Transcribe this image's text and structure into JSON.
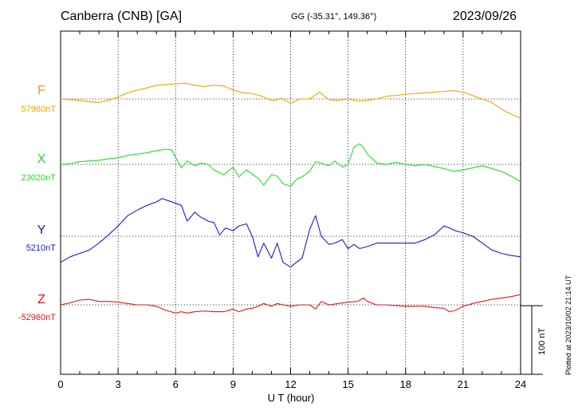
{
  "header": {
    "station": "Canberra (CNB)  [GA]",
    "coords": "GG (-35.31°, 149.36°)",
    "date": "2023/09/26"
  },
  "side_note": "Plotted at 2023/10/02 21:14 UT",
  "scale_label": "100 nT",
  "chart_data": {
    "type": "line",
    "xlabel": "U T (hour)",
    "xlim": [
      0,
      24
    ],
    "xticks": [
      0,
      3,
      6,
      9,
      12,
      15,
      18,
      21,
      24
    ],
    "scale_bar_nT": 100,
    "grid": true,
    "series": [
      {
        "name": "F",
        "baseline_label": "57980nT",
        "baseline": 57980,
        "color": "#f5a300",
        "x": [
          0,
          0.5,
          1,
          1.5,
          2,
          2.5,
          3,
          3.5,
          4,
          4.5,
          5,
          5.5,
          6,
          6.5,
          7,
          7.5,
          8,
          8.5,
          9,
          9.5,
          10,
          10.5,
          11,
          11.2,
          11.5,
          12,
          12.5,
          13,
          13.5,
          14,
          14.5,
          15,
          15.5,
          16,
          16.5,
          17,
          17.5,
          18,
          18.5,
          19,
          19.5,
          20,
          20.5,
          21,
          21.5,
          22,
          22.5,
          23,
          23.5,
          24
        ],
        "y": [
          57980,
          57979,
          57978,
          57976,
          57975,
          57978,
          57983,
          57989,
          57993,
          57996,
          58000,
          58001,
          58002,
          58003,
          58000,
          57998,
          58000,
          57999,
          57993,
          57989,
          57988,
          57984,
          57978,
          57978,
          57981,
          57974,
          57980,
          57980,
          57990,
          57979,
          57978,
          57980,
          57977,
          57978,
          57980,
          57984,
          57985,
          57987,
          57988,
          57989,
          57990,
          57991,
          57992,
          57990,
          57985,
          57980,
          57975,
          57965,
          57958,
          57952
        ]
      },
      {
        "name": "X",
        "baseline_label": "23020nT",
        "baseline": 23020,
        "color": "#22dd22",
        "x": [
          0,
          0.5,
          1,
          1.5,
          2,
          2.5,
          3,
          3.5,
          4,
          4.5,
          5,
          5.5,
          5.8,
          6,
          6.3,
          6.6,
          7,
          7.3,
          7.7,
          8,
          8.5,
          9,
          9.3,
          9.7,
          10,
          10.3,
          10.6,
          11,
          11.3,
          11.6,
          12,
          12.3,
          12.6,
          13,
          13.3,
          13.7,
          14,
          14.3,
          14.7,
          15,
          15.3,
          15.6,
          15.8,
          16,
          16.5,
          17,
          17.5,
          18,
          18.5,
          19,
          19.5,
          20,
          20.5,
          21,
          21.5,
          22,
          22.5,
          23,
          23.5,
          24
        ],
        "y": [
          23020,
          23021,
          23024,
          23025,
          23026,
          23028,
          23030,
          23033,
          23035,
          23037,
          23040,
          23042,
          23041,
          23030,
          23015,
          23025,
          23018,
          23022,
          23020,
          23012,
          23005,
          23016,
          23002,
          23012,
          23006,
          23000,
          22990,
          23005,
          23003,
          22992,
          22988,
          22998,
          23002,
          23010,
          23024,
          23021,
          23018,
          23025,
          23016,
          23020,
          23045,
          23050,
          23045,
          23035,
          23022,
          23020,
          23023,
          23020,
          23018,
          23020,
          23017,
          23014,
          23010,
          23012,
          23015,
          23018,
          23014,
          23010,
          23003,
          22995
        ]
      },
      {
        "name": "Y",
        "baseline_label": "5210nT",
        "baseline": 5210,
        "color": "#1a1ae0",
        "x": [
          0,
          0.5,
          1,
          1.5,
          2,
          2.5,
          3,
          3.5,
          4,
          4.5,
          5,
          5.3,
          5.6,
          6,
          6.3,
          6.6,
          7,
          7.3,
          7.7,
          8,
          8.3,
          8.6,
          9,
          9.3,
          9.7,
          10,
          10.3,
          10.6,
          11,
          11.3,
          11.6,
          12,
          12.3,
          12.6,
          13,
          13.3,
          13.6,
          14,
          14.3,
          14.7,
          15,
          15.3,
          15.6,
          16,
          16.5,
          17,
          17.5,
          18,
          18.5,
          19,
          19.5,
          20,
          20.3,
          20.6,
          21,
          21.5,
          22,
          22.5,
          23,
          23.5,
          24
        ],
        "y": [
          5172,
          5180,
          5185,
          5190,
          5200,
          5212,
          5225,
          5240,
          5248,
          5255,
          5260,
          5265,
          5262,
          5258,
          5255,
          5232,
          5245,
          5238,
          5232,
          5230,
          5212,
          5222,
          5218,
          5225,
          5228,
          5210,
          5180,
          5200,
          5178,
          5200,
          5172,
          5165,
          5172,
          5178,
          5220,
          5240,
          5210,
          5198,
          5200,
          5205,
          5192,
          5198,
          5192,
          5195,
          5200,
          5200,
          5200,
          5200,
          5200,
          5205,
          5212,
          5225,
          5222,
          5218,
          5215,
          5210,
          5200,
          5190,
          5185,
          5182,
          5180
        ]
      },
      {
        "name": "Z",
        "baseline_label": "-52960nT",
        "baseline": -52960,
        "color": "#e01a1a",
        "x": [
          0,
          0.5,
          1,
          1.5,
          2,
          2.5,
          3,
          3.5,
          4,
          4.5,
          5,
          5.5,
          6,
          6.3,
          6.6,
          7,
          7.5,
          8,
          8.5,
          9,
          9.3,
          9.7,
          10,
          10.3,
          10.6,
          11,
          11.3,
          11.6,
          12,
          12.5,
          13,
          13.3,
          13.6,
          14,
          14.5,
          15,
          15.5,
          15.8,
          16,
          16.5,
          17,
          17.5,
          18,
          18.5,
          19,
          19.5,
          20,
          20.3,
          20.6,
          21,
          21.5,
          22,
          22.5,
          23,
          23.5,
          24
        ],
        "y": [
          -52960,
          -52957,
          -52953,
          -52952,
          -52955,
          -52955,
          -52956,
          -52958,
          -52960,
          -52960,
          -52962,
          -52968,
          -52972,
          -52970,
          -52972,
          -52970,
          -52969,
          -52970,
          -52970,
          -52966,
          -52970,
          -52966,
          -52965,
          -52962,
          -52958,
          -52962,
          -52958,
          -52960,
          -52962,
          -52960,
          -52960,
          -52966,
          -52955,
          -52960,
          -52958,
          -52956,
          -52955,
          -52950,
          -52955,
          -52960,
          -52960,
          -52961,
          -52962,
          -52962,
          -52962,
          -52964,
          -52965,
          -52970,
          -52968,
          -52962,
          -52958,
          -52955,
          -52952,
          -52950,
          -52948,
          -52945
        ]
      }
    ]
  }
}
